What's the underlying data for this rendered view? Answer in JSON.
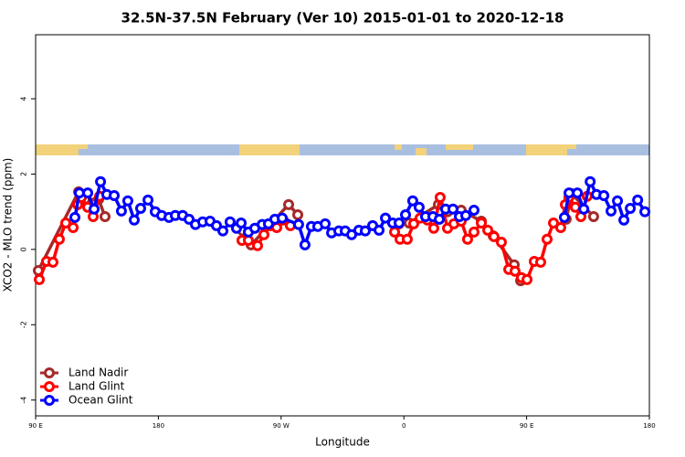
{
  "chart_data": {
    "type": "line",
    "title": "32.5N-37.5N February (Ver 10)   2015-01-01 to 2020-12-18",
    "x_label": "Longitude",
    "y_label": "XCO2 - MLO trend (ppm)",
    "xlim": [
      90,
      540
    ],
    "xticks": [
      {
        "value": 90,
        "label": "90 E"
      },
      {
        "value": 180,
        "label": "180"
      },
      {
        "value": 270,
        "label": "90 W"
      },
      {
        "value": 360,
        "label": "0"
      },
      {
        "value": 450,
        "label": "90 E"
      },
      {
        "value": 540,
        "label": "180"
      }
    ],
    "ylim": [
      -4.42,
      5.7
    ],
    "yticks": [
      -4,
      -2,
      0,
      2,
      4
    ],
    "legend": "bottom-left",
    "series": [
      {
        "name": "Land Nadir",
        "color": "#a52a2a",
        "x": [
          92.0,
          121.5,
          126.2,
          136.2,
          140.9,
          null,
          242.0,
          248.0,
          275.5,
          282.2,
          null,
          356.5,
          363.9,
          385.3,
          392.0,
          402.0,
          416.8,
          425.5,
          440.9,
          445.6,
          null,
          479.0,
          483.0,
          499.1
        ],
        "values": [
          -0.56,
          1.53,
          1.33,
          1.33,
          0.87,
          null,
          0.49,
          0.12,
          1.19,
          0.92,
          null,
          0.68,
          0.7,
          1.19,
          1.0,
          1.04,
          0.75,
          0.36,
          -0.41,
          -0.83,
          null,
          0.8,
          1.48,
          0.87
        ]
      },
      {
        "name": "Land Glint",
        "color": "#ff0000",
        "x": [
          92.7,
          98.0,
          102.7,
          107.4,
          112.1,
          117.5,
          120.8,
          123.5,
          128.2,
          132.2,
          136.9,
          null,
          241.3,
          246.0,
          252.7,
          257.4,
          262.1,
          266.8,
          271.5,
          276.8,
          null,
          353.2,
          357.2,
          362.5,
          367.2,
          371.9,
          377.3,
          381.9,
          386.6,
          392.0,
          396.7,
          402.0,
          406.7,
          411.4,
          416.8,
          421.5,
          426.1,
          431.5,
          436.9,
          441.5,
          446.2,
          450.3,
          455.6,
          460.3,
          465.0,
          469.7,
          475.0,
          478.4,
          481.0,
          485.7,
          489.8,
          494.4
        ],
        "values": [
          -0.8,
          -0.32,
          -0.34,
          0.27,
          0.7,
          0.58,
          1.19,
          1.38,
          1.12,
          0.87,
          1.41,
          null,
          0.24,
          0.24,
          0.1,
          0.39,
          0.63,
          0.58,
          0.78,
          0.63,
          null,
          0.46,
          0.27,
          0.27,
          0.68,
          0.83,
          0.78,
          0.56,
          1.38,
          0.56,
          0.68,
          0.75,
          0.27,
          0.46,
          0.7,
          0.51,
          0.34,
          0.19,
          -0.53,
          -0.58,
          -0.75,
          -0.8,
          -0.32,
          -0.34,
          0.27,
          0.7,
          0.58,
          1.19,
          1.38,
          1.12,
          0.87,
          1.41
        ]
      },
      {
        "name": "Ocean Glint",
        "color": "#0000ff",
        "x": [
          118.8,
          122.1,
          128.2,
          132.9,
          137.6,
          142.2,
          147.6,
          152.9,
          157.6,
          162.3,
          167.0,
          172.4,
          177.7,
          182.4,
          187.8,
          192.4,
          197.8,
          202.5,
          207.2,
          212.5,
          217.9,
          222.6,
          227.3,
          232.6,
          237.3,
          240.7,
          246.0,
          250.7,
          256.1,
          260.7,
          265.4,
          270.8,
          282.8,
          287.5,
          292.2,
          296.9,
          302.3,
          307.0,
          312.3,
          317.0,
          321.7,
          327.0,
          331.7,
          337.1,
          341.8,
          346.5,
          351.8,
          356.5,
          361.2,
          366.5,
          371.2,
          375.9,
          381.3,
          386.0,
          390.6,
          396.0,
          400.7,
          405.4,
          411.4,
          null,
          477.7,
          481.1,
          487.2,
          491.9,
          496.6,
          501.2,
          506.6,
          511.9,
          516.6,
          521.3,
          526.0,
          531.4,
          536.7
        ],
        "values": [
          0.85,
          1.5,
          1.5,
          1.07,
          1.8,
          1.46,
          1.43,
          1.02,
          1.29,
          0.78,
          1.09,
          1.31,
          1.0,
          0.9,
          0.85,
          0.9,
          0.9,
          0.8,
          0.66,
          0.73,
          0.75,
          0.63,
          0.49,
          0.73,
          0.56,
          0.7,
          0.46,
          0.56,
          0.66,
          0.68,
          0.8,
          0.83,
          0.66,
          0.12,
          0.61,
          0.61,
          0.68,
          0.44,
          0.49,
          0.49,
          0.39,
          0.51,
          0.49,
          0.63,
          0.51,
          0.83,
          0.7,
          0.7,
          0.92,
          1.29,
          1.12,
          0.87,
          0.87,
          0.8,
          1.07,
          1.07,
          0.87,
          0.9,
          1.04,
          null,
          0.85,
          1.5,
          1.5,
          1.07,
          1.8,
          1.46,
          1.43,
          1.02,
          1.29,
          0.78,
          1.09,
          1.31,
          1.0
        ]
      }
    ]
  }
}
